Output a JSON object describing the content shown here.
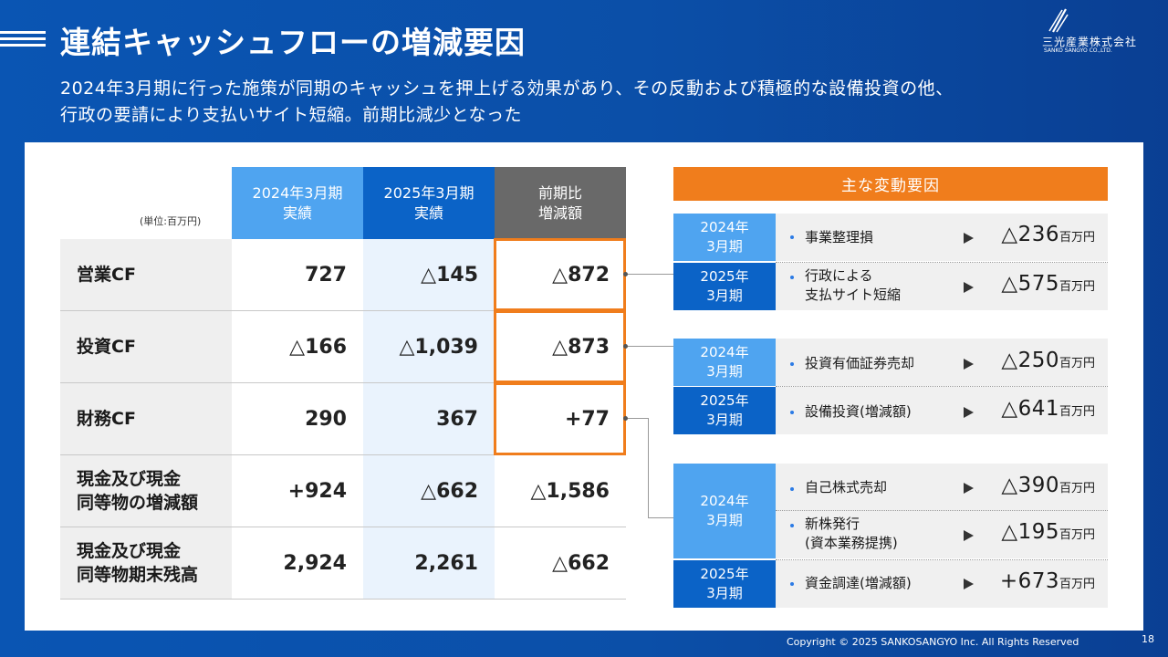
{
  "header": {
    "title": "連結キャッシュフローの増減要因",
    "subtitle_line1": "2024年3月期に行った施策が同期のキャッシュを押上げる効果があり、その反動および積極的な設備投資の他、",
    "subtitle_line2": "行政の要請により支払いサイト短縮。前期比減少となった"
  },
  "logo": {
    "name": "三光産業株式会社",
    "sub": "SANKO SANGYO CO.,LTD."
  },
  "table": {
    "unit": "(単位:百万円)",
    "columns": [
      {
        "line1": "2024年3月期",
        "line2": "実績"
      },
      {
        "line1": "2025年3月期",
        "line2": "実績"
      },
      {
        "line1": "前期比",
        "line2": "増減額"
      }
    ],
    "rows": [
      {
        "label1": "営業CF",
        "label2": "",
        "v1": "727",
        "v2": "△145",
        "v3": "△872"
      },
      {
        "label1": "投資CF",
        "label2": "",
        "v1": "△166",
        "v2": "△1,039",
        "v3": "△873"
      },
      {
        "label1": "財務CF",
        "label2": "",
        "v1": "290",
        "v2": "367",
        "v3": "+77"
      },
      {
        "label1": "現金及び現金",
        "label2": "同等物の増減額",
        "v1": "+924",
        "v2": "△662",
        "v3": "△1,586"
      },
      {
        "label1": "現金及び現金",
        "label2": "同等物期末残高",
        "v1": "2,924",
        "v2": "2,261",
        "v3": "△662"
      }
    ]
  },
  "factors": {
    "header": "主な変動要因",
    "groups": [
      {
        "rows": [
          {
            "period1": "2024年",
            "period2": "3月期",
            "items": [
              {
                "text1": "事業整理損",
                "text2": "",
                "amount": "△236",
                "unit": "百万円"
              }
            ]
          },
          {
            "period1": "2025年",
            "period2": "3月期",
            "items": [
              {
                "text1": "行政による",
                "text2": "支払サイト短縮",
                "amount": "△575",
                "unit": "百万円"
              }
            ]
          }
        ]
      },
      {
        "rows": [
          {
            "period1": "2024年",
            "period2": "3月期",
            "items": [
              {
                "text1": "投資有価証券売却",
                "text2": "",
                "amount": "△250",
                "unit": "百万円"
              }
            ]
          },
          {
            "period1": "2025年",
            "period2": "3月期",
            "items": [
              {
                "text1": "設備投資(増減額)",
                "text2": "",
                "amount": "△641",
                "unit": "百万円"
              }
            ]
          }
        ]
      },
      {
        "rows": [
          {
            "period1": "2024年",
            "period2": "3月期",
            "items": [
              {
                "text1": "自己株式売却",
                "text2": "",
                "amount": "△390",
                "unit": "百万円"
              },
              {
                "text1": "新株発行",
                "text2": "(資本業務提携)",
                "amount": "△195",
                "unit": "百万円"
              }
            ]
          },
          {
            "period1": "2025年",
            "period2": "3月期",
            "items": [
              {
                "text1": "資金調達(増減額)",
                "text2": "",
                "amount": "+673",
                "unit": "百万円"
              }
            ]
          }
        ]
      }
    ]
  },
  "footer": {
    "copyright": "Copyright © 2025 SANKOSANGYO Inc. All Rights Reserved",
    "page": "18"
  },
  "colors": {
    "brand_blue": "#0b63c7",
    "light_blue": "#4fa4f0",
    "accent_orange": "#f07d1c",
    "gray_header": "#696969"
  }
}
